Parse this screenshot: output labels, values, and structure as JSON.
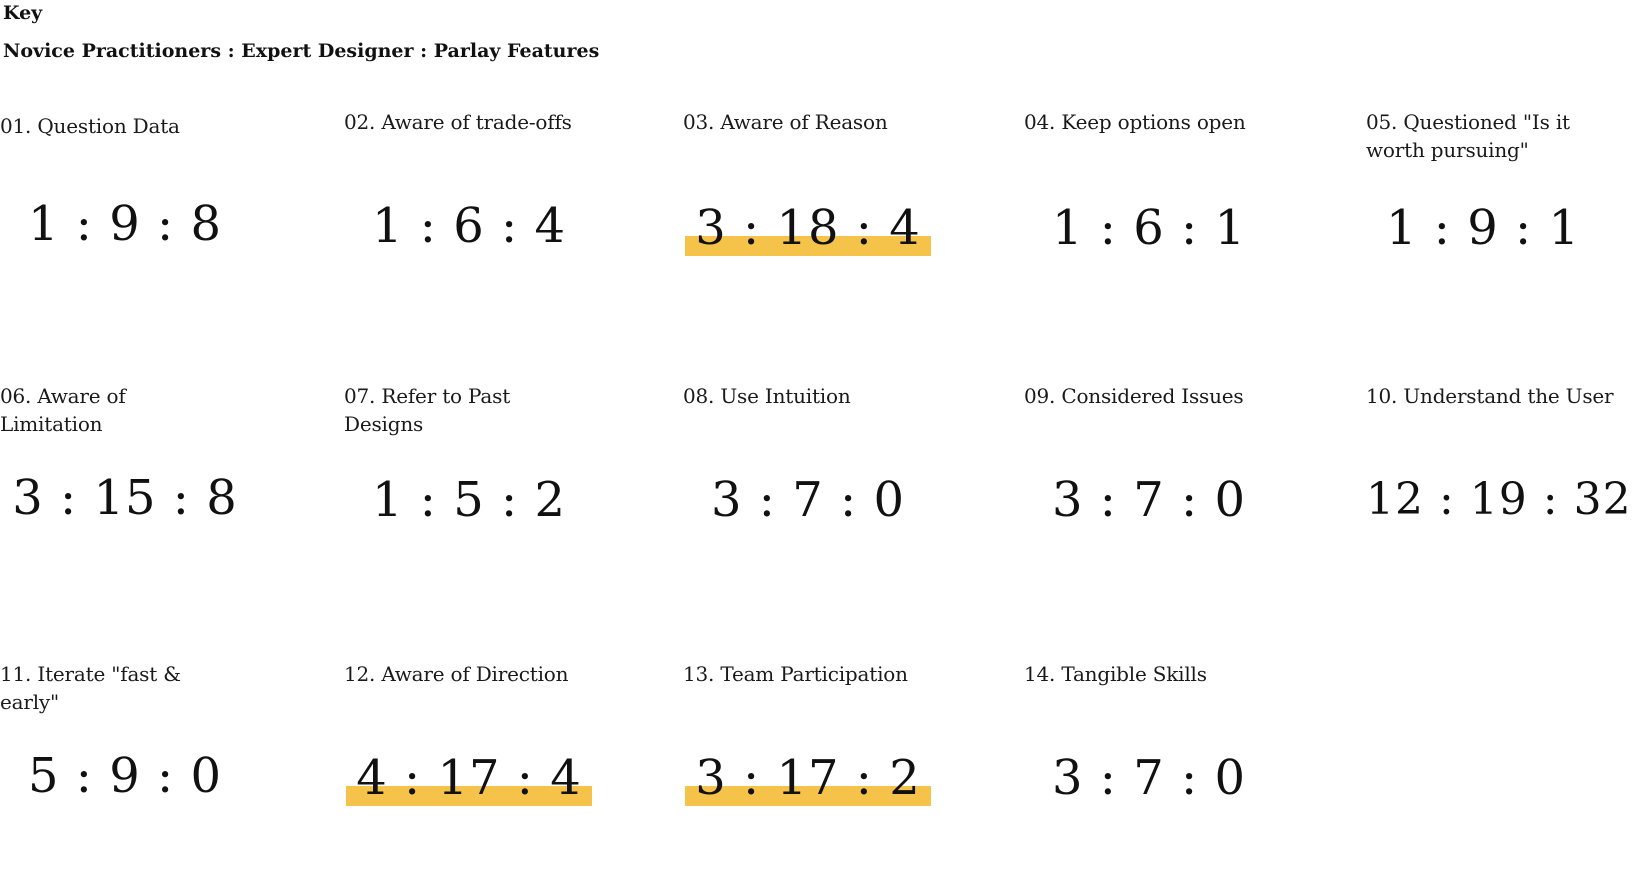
{
  "key": {
    "title": "Key",
    "legend": "Novice Practitioners : Expert Designer : Parlay Features"
  },
  "items": [
    {
      "label": "01. Question Data",
      "ratio": "1 : 9 : 8",
      "highlighted": false
    },
    {
      "label": "02. Aware of trade-offs",
      "ratio": "1 : 6 : 4",
      "highlighted": false
    },
    {
      "label": "03. Aware of Reason",
      "ratio": "3 : 18 : 4",
      "highlighted": true
    },
    {
      "label": "04. Keep options open",
      "ratio": "1 : 6 : 1",
      "highlighted": false
    },
    {
      "label": "05. Questioned \"Is it worth pursuing\"",
      "ratio": "1 : 9 : 1",
      "highlighted": false
    },
    {
      "label": "06. Aware of Limitation",
      "ratio": "3 : 15 : 8",
      "highlighted": false
    },
    {
      "label": "07. Refer to Past Designs",
      "ratio": "1 : 5 : 2",
      "highlighted": false
    },
    {
      "label": "08. Use Intuition",
      "ratio": "3 : 7 : 0",
      "highlighted": false
    },
    {
      "label": "09. Considered Issues",
      "ratio": "3 : 7 : 0",
      "highlighted": false
    },
    {
      "label": "10. Understand the User",
      "ratio": "12 : 19 : 32",
      "highlighted": false
    },
    {
      "label": "11. Iterate \"fast & early\"",
      "ratio": "5 : 9 : 0",
      "highlighted": false
    },
    {
      "label": "12. Aware of Direction",
      "ratio": "4 : 17 : 4",
      "highlighted": true
    },
    {
      "label": "13. Team Participation",
      "ratio": "3 : 17 : 2",
      "highlighted": true
    },
    {
      "label": "14. Tangible Skills",
      "ratio": "3 : 7 : 0",
      "highlighted": false
    }
  ],
  "colors": {
    "highlight": "#f5c24a",
    "text": "#111111",
    "background": "#ffffff"
  }
}
